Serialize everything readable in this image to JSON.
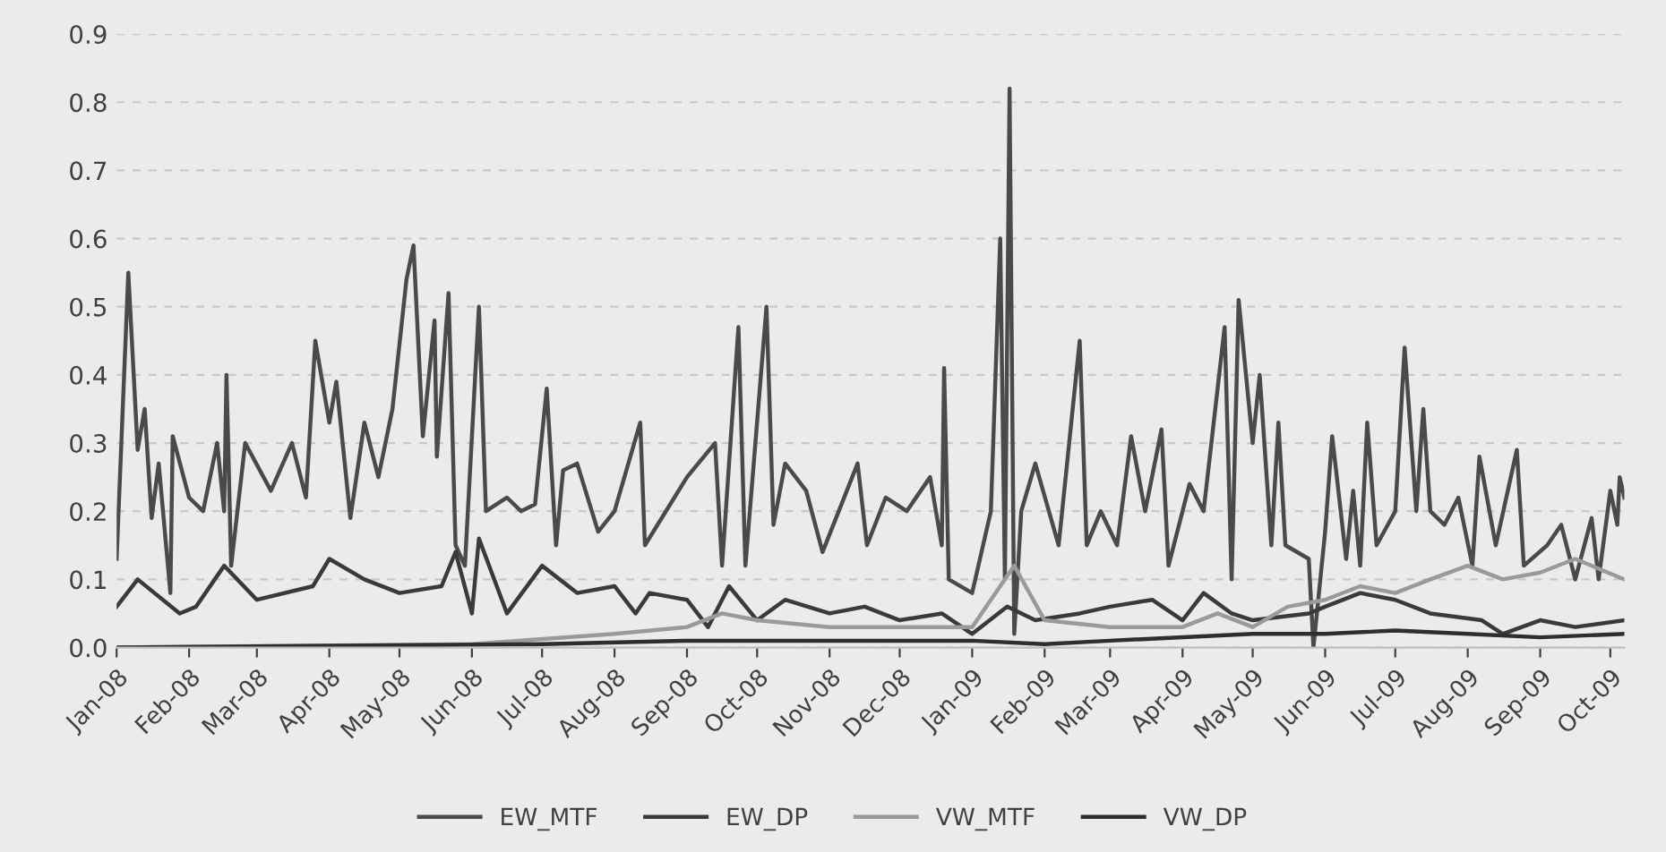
{
  "chart_data": {
    "type": "line",
    "xlim": [
      "2008-01-01",
      "2009-10-07"
    ],
    "xticks": [
      {
        "value": "2008-01-01",
        "label": "Jan-08"
      },
      {
        "value": "2008-02-01",
        "label": "Feb-08"
      },
      {
        "value": "2008-03-01",
        "label": "Mar-08"
      },
      {
        "value": "2008-04-01",
        "label": "Apr-08"
      },
      {
        "value": "2008-05-01",
        "label": "May-08"
      },
      {
        "value": "2008-06-01",
        "label": "Jun-08"
      },
      {
        "value": "2008-07-01",
        "label": "Jul-08"
      },
      {
        "value": "2008-08-01",
        "label": "Aug-08"
      },
      {
        "value": "2008-09-01",
        "label": "Sep-08"
      },
      {
        "value": "2008-10-01",
        "label": "Oct-08"
      },
      {
        "value": "2008-11-01",
        "label": "Nov-08"
      },
      {
        "value": "2008-12-01",
        "label": "Dec-08"
      },
      {
        "value": "2009-01-01",
        "label": "Jan-09"
      },
      {
        "value": "2009-02-01",
        "label": "Feb-09"
      },
      {
        "value": "2009-03-01",
        "label": "Mar-09"
      },
      {
        "value": "2009-04-01",
        "label": "Apr-09"
      },
      {
        "value": "2009-05-01",
        "label": "May-09"
      },
      {
        "value": "2009-06-01",
        "label": "Jun-09"
      },
      {
        "value": "2009-07-01",
        "label": "Jul-09"
      },
      {
        "value": "2009-08-01",
        "label": "Aug-09"
      },
      {
        "value": "2009-09-01",
        "label": "Sep-09"
      },
      {
        "value": "2009-10-01",
        "label": "Oct-09"
      }
    ],
    "ylim": [
      0,
      0.9
    ],
    "yticks": [
      {
        "value": 0,
        "label": "0.0"
      },
      {
        "value": 0.1,
        "label": "0.1"
      },
      {
        "value": 0.2,
        "label": "0.2"
      },
      {
        "value": 0.3,
        "label": "0.3"
      },
      {
        "value": 0.4,
        "label": "0.4"
      },
      {
        "value": 0.5,
        "label": "0.5"
      },
      {
        "value": 0.6,
        "label": "0.6"
      },
      {
        "value": 0.7,
        "label": "0.7"
      },
      {
        "value": 0.8,
        "label": "0.8"
      },
      {
        "value": 0.9,
        "label": "0.9"
      }
    ],
    "grid": "y",
    "legend": "bottom",
    "marker": "none",
    "line_style": "solid",
    "series": [
      {
        "name": "EW_MTF",
        "color": "#4a4a4a",
        "x": [
          "2008-01-01",
          "2008-01-06",
          "2008-01-10",
          "2008-01-13",
          "2008-01-16",
          "2008-01-19",
          "2008-01-24",
          "2008-01-25",
          "2008-02-01",
          "2008-02-07",
          "2008-02-13",
          "2008-02-16",
          "2008-02-17",
          "2008-02-19",
          "2008-02-25",
          "2008-03-07",
          "2008-03-16",
          "2008-03-22",
          "2008-03-26",
          "2008-04-01",
          "2008-04-04",
          "2008-04-10",
          "2008-04-16",
          "2008-04-22",
          "2008-04-28",
          "2008-05-04",
          "2008-05-07",
          "2008-05-11",
          "2008-05-16",
          "2008-05-17",
          "2008-05-22",
          "2008-05-25",
          "2008-05-29",
          "2008-06-04",
          "2008-06-07",
          "2008-06-16",
          "2008-06-22",
          "2008-06-28",
          "2008-07-03",
          "2008-07-07",
          "2008-07-10",
          "2008-07-16",
          "2008-07-25",
          "2008-08-01",
          "2008-08-12",
          "2008-08-14",
          "2008-09-01",
          "2008-09-13",
          "2008-09-16",
          "2008-09-23",
          "2008-09-26",
          "2008-10-05",
          "2008-10-08",
          "2008-10-13",
          "2008-10-22",
          "2008-10-29",
          "2008-11-13",
          "2008-11-17",
          "2008-11-25",
          "2008-12-04",
          "2008-12-14",
          "2008-12-19",
          "2008-12-20",
          "2008-12-22",
          "2009-01-01",
          "2009-01-09",
          "2009-01-13",
          "2009-01-15",
          "2009-01-17",
          "2009-01-19",
          "2009-01-22",
          "2009-01-28",
          "2009-02-07",
          "2009-02-16",
          "2009-02-19",
          "2009-02-25",
          "2009-03-04",
          "2009-03-10",
          "2009-03-16",
          "2009-03-23",
          "2009-03-26",
          "2009-04-04",
          "2009-04-10",
          "2009-04-19",
          "2009-04-22",
          "2009-04-25",
          "2009-05-01",
          "2009-05-04",
          "2009-05-09",
          "2009-05-12",
          "2009-05-15",
          "2009-05-25",
          "2009-05-27",
          "2009-06-01",
          "2009-06-04",
          "2009-06-10",
          "2009-06-13",
          "2009-06-16",
          "2009-06-19",
          "2009-06-23",
          "2009-07-01",
          "2009-07-05",
          "2009-07-10",
          "2009-07-13",
          "2009-07-16",
          "2009-07-22",
          "2009-07-28",
          "2009-08-03",
          "2009-08-06",
          "2009-08-13",
          "2009-08-22",
          "2009-08-25",
          "2009-09-04",
          "2009-09-10",
          "2009-09-16",
          "2009-09-23",
          "2009-09-26",
          "2009-10-01",
          "2009-10-04",
          "2009-10-05",
          "2009-10-07"
        ],
        "values": [
          0.13,
          0.55,
          0.29,
          0.35,
          0.19,
          0.27,
          0.08,
          0.31,
          0.22,
          0.2,
          0.3,
          0.2,
          0.4,
          0.12,
          0.3,
          0.23,
          0.3,
          0.22,
          0.45,
          0.33,
          0.39,
          0.19,
          0.33,
          0.25,
          0.35,
          0.54,
          0.59,
          0.31,
          0.48,
          0.28,
          0.52,
          0.15,
          0.12,
          0.5,
          0.2,
          0.22,
          0.2,
          0.21,
          0.38,
          0.15,
          0.26,
          0.27,
          0.17,
          0.2,
          0.33,
          0.15,
          0.25,
          0.3,
          0.12,
          0.47,
          0.12,
          0.5,
          0.18,
          0.27,
          0.23,
          0.14,
          0.27,
          0.15,
          0.22,
          0.2,
          0.25,
          0.15,
          0.41,
          0.1,
          0.08,
          0.2,
          0.6,
          0.1,
          0.82,
          0.02,
          0.2,
          0.27,
          0.15,
          0.45,
          0.15,
          0.2,
          0.15,
          0.31,
          0.2,
          0.32,
          0.12,
          0.24,
          0.2,
          0.47,
          0.1,
          0.51,
          0.3,
          0.4,
          0.15,
          0.33,
          0.15,
          0.13,
          0.0,
          0.17,
          0.31,
          0.13,
          0.23,
          0.12,
          0.33,
          0.15,
          0.2,
          0.44,
          0.2,
          0.35,
          0.2,
          0.18,
          0.22,
          0.12,
          0.28,
          0.15,
          0.29,
          0.12,
          0.15,
          0.18,
          0.1,
          0.19,
          0.1,
          0.23,
          0.18,
          0.25,
          0.22
        ]
      },
      {
        "name": "EW_DP",
        "color": "#3a3a3a",
        "x": [
          "2008-01-01",
          "2008-01-10",
          "2008-01-28",
          "2008-02-04",
          "2008-02-16",
          "2008-03-01",
          "2008-03-25",
          "2008-04-01",
          "2008-04-16",
          "2008-05-01",
          "2008-05-19",
          "2008-05-25",
          "2008-06-01",
          "2008-06-04",
          "2008-06-16",
          "2008-07-01",
          "2008-07-16",
          "2008-08-01",
          "2008-08-10",
          "2008-08-16",
          "2008-09-01",
          "2008-09-10",
          "2008-09-19",
          "2008-10-01",
          "2008-10-13",
          "2008-11-01",
          "2008-11-16",
          "2008-12-01",
          "2008-12-19",
          "2009-01-01",
          "2009-01-16",
          "2009-01-28",
          "2009-02-16",
          "2009-03-01",
          "2009-03-19",
          "2009-04-01",
          "2009-04-10",
          "2009-04-22",
          "2009-05-01",
          "2009-05-25",
          "2009-06-01",
          "2009-06-16",
          "2009-07-01",
          "2009-07-16",
          "2009-08-07",
          "2009-08-16",
          "2009-09-01",
          "2009-09-16",
          "2009-10-07"
        ],
        "values": [
          0.06,
          0.1,
          0.05,
          0.06,
          0.12,
          0.07,
          0.09,
          0.13,
          0.1,
          0.08,
          0.09,
          0.14,
          0.05,
          0.16,
          0.05,
          0.12,
          0.08,
          0.09,
          0.05,
          0.08,
          0.07,
          0.03,
          0.09,
          0.04,
          0.07,
          0.05,
          0.06,
          0.04,
          0.05,
          0.02,
          0.06,
          0.04,
          0.05,
          0.06,
          0.07,
          0.04,
          0.08,
          0.05,
          0.04,
          0.05,
          0.06,
          0.08,
          0.07,
          0.05,
          0.04,
          0.02,
          0.04,
          0.03,
          0.04
        ]
      },
      {
        "name": "VW_MTF",
        "color": "#9a9a9a",
        "x": [
          "2008-01-01",
          "2008-06-01",
          "2008-08-01",
          "2008-09-01",
          "2008-09-16",
          "2008-10-01",
          "2008-11-01",
          "2008-12-01",
          "2009-01-01",
          "2009-01-19",
          "2009-02-01",
          "2009-03-01",
          "2009-04-01",
          "2009-04-16",
          "2009-05-01",
          "2009-05-16",
          "2009-06-01",
          "2009-06-16",
          "2009-07-01",
          "2009-07-16",
          "2009-08-01",
          "2009-08-16",
          "2009-09-01",
          "2009-09-16",
          "2009-10-07"
        ],
        "values": [
          0.0,
          0.005,
          0.02,
          0.03,
          0.05,
          0.04,
          0.03,
          0.03,
          0.03,
          0.12,
          0.04,
          0.03,
          0.03,
          0.05,
          0.03,
          0.06,
          0.07,
          0.09,
          0.08,
          0.1,
          0.12,
          0.1,
          0.11,
          0.13,
          0.1
        ]
      },
      {
        "name": "VW_DP",
        "color": "#2e2e2e",
        "x": [
          "2008-01-01",
          "2008-07-01",
          "2008-09-01",
          "2008-11-01",
          "2009-01-01",
          "2009-02-01",
          "2009-03-01",
          "2009-05-01",
          "2009-06-01",
          "2009-07-01",
          "2009-08-01",
          "2009-09-01",
          "2009-10-07"
        ],
        "values": [
          0.0,
          0.005,
          0.01,
          0.01,
          0.01,
          0.005,
          0.01,
          0.02,
          0.02,
          0.025,
          0.02,
          0.015,
          0.02
        ]
      }
    ]
  }
}
